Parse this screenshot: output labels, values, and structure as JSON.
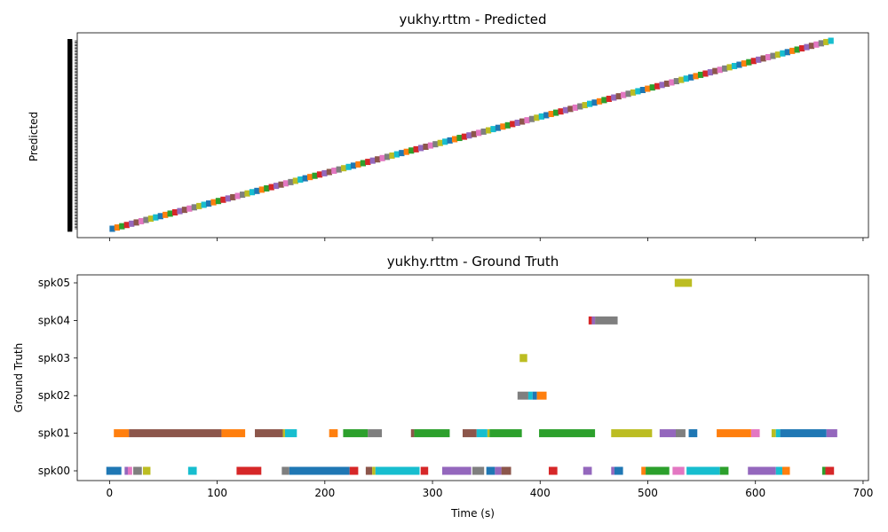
{
  "chart_data": [
    {
      "type": "timeline",
      "title": "yukhy.rttm - Predicted",
      "ylabel": "Predicted",
      "xlim": [
        -30,
        705
      ],
      "xticks": [
        0,
        100,
        200,
        300,
        400,
        500,
        600,
        700
      ],
      "tick_labels_shown": false,
      "num_tracks": 150,
      "track_label_glyph": "■",
      "first_segment_start": 0,
      "last_segment_end": 672,
      "note_colors": [
        "#1f77b4",
        "#ff7f0e",
        "#2ca02c",
        "#d62728",
        "#9467bd",
        "#8c564b",
        "#e377c2",
        "#7f7f7f",
        "#bcbd22",
        "#17becf"
      ]
    },
    {
      "type": "timeline",
      "title": "yukhy.rttm - Ground Truth",
      "xlabel": "Time (s)",
      "ylabel": "Ground Truth",
      "xlim": [
        -30,
        705
      ],
      "xticks": [
        0,
        100,
        200,
        300,
        400,
        500,
        600,
        700
      ],
      "categories": [
        "spk00",
        "spk01",
        "spk02",
        "spk03",
        "spk04",
        "spk05"
      ],
      "segments": [
        {
          "speaker": "spk00",
          "start": -3,
          "end": 11,
          "color": "#1f77b4"
        },
        {
          "speaker": "spk00",
          "start": 14,
          "end": 17,
          "color": "#9467bd"
        },
        {
          "speaker": "spk00",
          "start": 17,
          "end": 21,
          "color": "#e377c2"
        },
        {
          "speaker": "spk00",
          "start": 22,
          "end": 30,
          "color": "#7f7f7f"
        },
        {
          "speaker": "spk00",
          "start": 31,
          "end": 38,
          "color": "#bcbd22"
        },
        {
          "speaker": "spk00",
          "start": 73,
          "end": 81,
          "color": "#17becf"
        },
        {
          "speaker": "spk00",
          "start": 118,
          "end": 141,
          "color": "#d62728"
        },
        {
          "speaker": "spk00",
          "start": 160,
          "end": 167,
          "color": "#7f7f7f"
        },
        {
          "speaker": "spk00",
          "start": 167,
          "end": 223,
          "color": "#1f77b4"
        },
        {
          "speaker": "spk00",
          "start": 223,
          "end": 231,
          "color": "#d62728"
        },
        {
          "speaker": "spk00",
          "start": 238,
          "end": 244,
          "color": "#8c564b"
        },
        {
          "speaker": "spk00",
          "start": 244,
          "end": 247,
          "color": "#bcbd22"
        },
        {
          "speaker": "spk00",
          "start": 247,
          "end": 288,
          "color": "#17becf"
        },
        {
          "speaker": "spk00",
          "start": 289,
          "end": 296,
          "color": "#d62728"
        },
        {
          "speaker": "spk00",
          "start": 309,
          "end": 336,
          "color": "#9467bd"
        },
        {
          "speaker": "spk00",
          "start": 337,
          "end": 348,
          "color": "#7f7f7f"
        },
        {
          "speaker": "spk00",
          "start": 350,
          "end": 358,
          "color": "#1f77b4"
        },
        {
          "speaker": "spk00",
          "start": 358,
          "end": 364,
          "color": "#9467bd"
        },
        {
          "speaker": "spk00",
          "start": 364,
          "end": 373,
          "color": "#8c564b"
        },
        {
          "speaker": "spk00",
          "start": 408,
          "end": 416,
          "color": "#d62728"
        },
        {
          "speaker": "spk00",
          "start": 440,
          "end": 448,
          "color": "#9467bd"
        },
        {
          "speaker": "spk00",
          "start": 466,
          "end": 469,
          "color": "#9467bd"
        },
        {
          "speaker": "spk00",
          "start": 469,
          "end": 477,
          "color": "#1f77b4"
        },
        {
          "speaker": "spk00",
          "start": 494,
          "end": 498,
          "color": "#ff7f0e"
        },
        {
          "speaker": "spk00",
          "start": 498,
          "end": 520,
          "color": "#2ca02c"
        },
        {
          "speaker": "spk00",
          "start": 523,
          "end": 534,
          "color": "#e377c2"
        },
        {
          "speaker": "spk00",
          "start": 536,
          "end": 567,
          "color": "#17becf"
        },
        {
          "speaker": "spk00",
          "start": 567,
          "end": 575,
          "color": "#2ca02c"
        },
        {
          "speaker": "spk00",
          "start": 593,
          "end": 619,
          "color": "#9467bd"
        },
        {
          "speaker": "spk00",
          "start": 619,
          "end": 625,
          "color": "#17becf"
        },
        {
          "speaker": "spk00",
          "start": 625,
          "end": 632,
          "color": "#ff7f0e"
        },
        {
          "speaker": "spk00",
          "start": 662,
          "end": 665,
          "color": "#2ca02c"
        },
        {
          "speaker": "spk00",
          "start": 665,
          "end": 673,
          "color": "#d62728"
        },
        {
          "speaker": "spk01",
          "start": 4,
          "end": 18,
          "color": "#ff7f0e"
        },
        {
          "speaker": "spk01",
          "start": 18,
          "end": 104,
          "color": "#8c564b"
        },
        {
          "speaker": "spk01",
          "start": 104,
          "end": 126,
          "color": "#ff7f0e"
        },
        {
          "speaker": "spk01",
          "start": 135,
          "end": 161,
          "color": "#8c564b"
        },
        {
          "speaker": "spk01",
          "start": 161,
          "end": 163,
          "color": "#bcbd22"
        },
        {
          "speaker": "spk01",
          "start": 163,
          "end": 174,
          "color": "#17becf"
        },
        {
          "speaker": "spk01",
          "start": 204,
          "end": 212,
          "color": "#ff7f0e"
        },
        {
          "speaker": "spk01",
          "start": 217,
          "end": 240,
          "color": "#2ca02c"
        },
        {
          "speaker": "spk01",
          "start": 240,
          "end": 253,
          "color": "#7f7f7f"
        },
        {
          "speaker": "spk01",
          "start": 280,
          "end": 283,
          "color": "#8c564b"
        },
        {
          "speaker": "spk01",
          "start": 283,
          "end": 316,
          "color": "#2ca02c"
        },
        {
          "speaker": "spk01",
          "start": 328,
          "end": 341,
          "color": "#8c564b"
        },
        {
          "speaker": "spk01",
          "start": 341,
          "end": 351,
          "color": "#17becf"
        },
        {
          "speaker": "spk01",
          "start": 351,
          "end": 353,
          "color": "#bcbd22"
        },
        {
          "speaker": "spk01",
          "start": 353,
          "end": 383,
          "color": "#2ca02c"
        },
        {
          "speaker": "spk01",
          "start": 399,
          "end": 451,
          "color": "#2ca02c"
        },
        {
          "speaker": "spk01",
          "start": 466,
          "end": 504,
          "color": "#bcbd22"
        },
        {
          "speaker": "spk01",
          "start": 511,
          "end": 526,
          "color": "#9467bd"
        },
        {
          "speaker": "spk01",
          "start": 526,
          "end": 535,
          "color": "#7f7f7f"
        },
        {
          "speaker": "spk01",
          "start": 538,
          "end": 546,
          "color": "#1f77b4"
        },
        {
          "speaker": "spk01",
          "start": 564,
          "end": 596,
          "color": "#ff7f0e"
        },
        {
          "speaker": "spk01",
          "start": 596,
          "end": 604,
          "color": "#e377c2"
        },
        {
          "speaker": "spk01",
          "start": 615,
          "end": 619,
          "color": "#bcbd22"
        },
        {
          "speaker": "spk01",
          "start": 619,
          "end": 623,
          "color": "#17becf"
        },
        {
          "speaker": "spk01",
          "start": 623,
          "end": 666,
          "color": "#1f77b4"
        },
        {
          "speaker": "spk01",
          "start": 666,
          "end": 676,
          "color": "#9467bd"
        },
        {
          "speaker": "spk02",
          "start": 379,
          "end": 389,
          "color": "#7f7f7f"
        },
        {
          "speaker": "spk02",
          "start": 389,
          "end": 393,
          "color": "#17becf"
        },
        {
          "speaker": "spk02",
          "start": 393,
          "end": 397,
          "color": "#1f77b4"
        },
        {
          "speaker": "spk02",
          "start": 397,
          "end": 406,
          "color": "#ff7f0e"
        },
        {
          "speaker": "spk03",
          "start": 381,
          "end": 388,
          "color": "#bcbd22"
        },
        {
          "speaker": "spk04",
          "start": 445,
          "end": 448,
          "color": "#d62728"
        },
        {
          "speaker": "spk04",
          "start": 448,
          "end": 451,
          "color": "#9467bd"
        },
        {
          "speaker": "spk04",
          "start": 451,
          "end": 472,
          "color": "#7f7f7f"
        },
        {
          "speaker": "spk05",
          "start": 525,
          "end": 541,
          "color": "#bcbd22"
        }
      ]
    }
  ]
}
